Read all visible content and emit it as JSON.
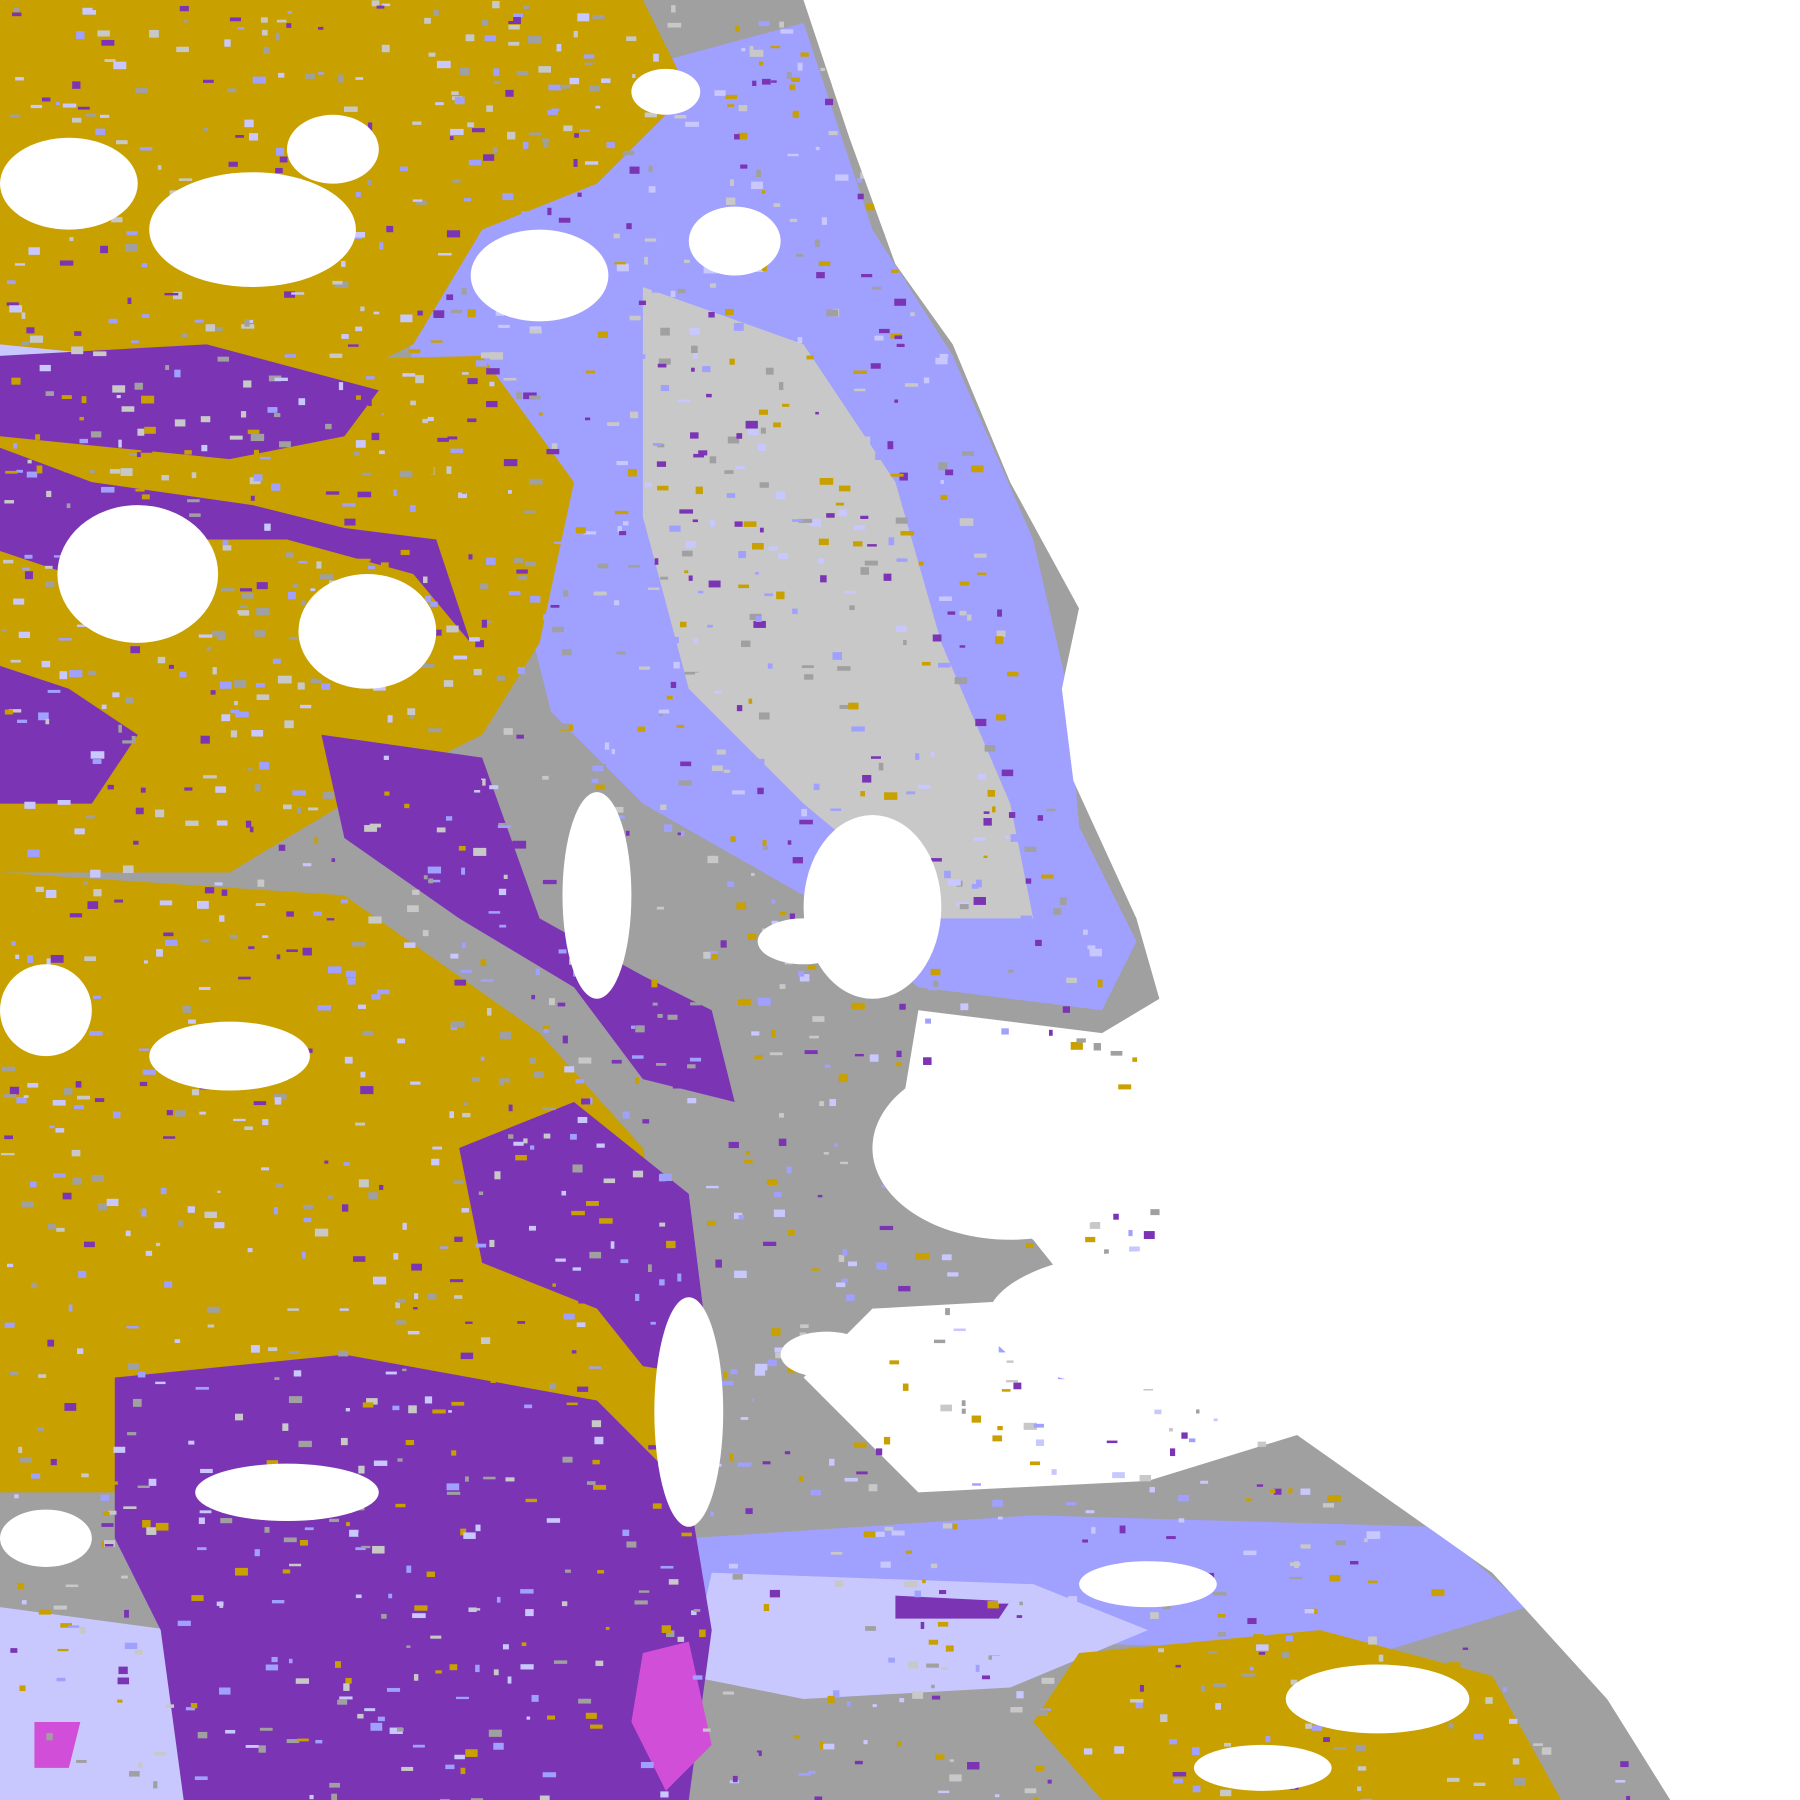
{
  "map": {
    "background": "#ffffff",
    "classes": [
      {
        "key": "gold",
        "color": "#c8a000"
      },
      {
        "key": "purple",
        "color": "#7b34b4"
      },
      {
        "key": "magenta",
        "color": "#d04ed8"
      },
      {
        "key": "lavender-light",
        "color": "#c8c8ff"
      },
      {
        "key": "periwinkle",
        "color": "#a0a0ff"
      },
      {
        "key": "gray",
        "color": "#a0a0a0"
      },
      {
        "key": "gray-light",
        "color": "#c8c8c8"
      }
    ]
  }
}
